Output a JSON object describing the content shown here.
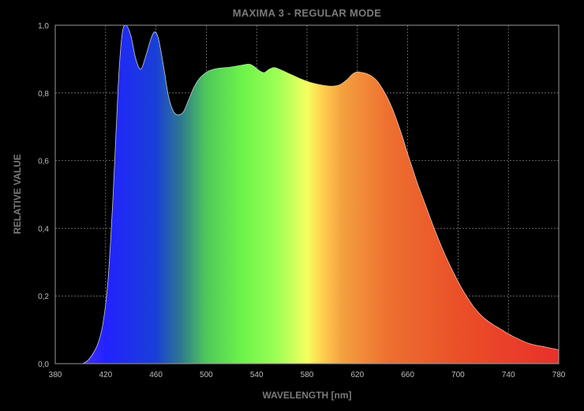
{
  "chart_data": {
    "type": "area",
    "title": "MAXIMA 3 - REGULAR MODE",
    "xlabel": "WAVELENGTH [nm]",
    "ylabel": "RELATIVE VALUE",
    "xlim": [
      380,
      780
    ],
    "ylim": [
      0,
      1.0
    ],
    "x_ticks": [
      380,
      420,
      460,
      500,
      540,
      580,
      620,
      660,
      700,
      740,
      780
    ],
    "x_tick_labels": [
      "380",
      "420",
      "460",
      "500",
      "540",
      "580",
      "620",
      "660",
      "700",
      "740",
      "780"
    ],
    "y_ticks": [
      0,
      0.2,
      0.4,
      0.6,
      0.8,
      1.0
    ],
    "y_tick_labels": [
      "0,0",
      "0,2",
      "0,4",
      "0,6",
      "0,8",
      "1,0"
    ],
    "grid": true,
    "fill": "spectral-gradient",
    "series": [
      {
        "x": [
          402,
          406,
          410,
          414,
          418,
          422,
          426,
          430,
          433,
          436,
          440,
          444,
          448,
          452,
          456,
          459,
          462,
          466,
          470,
          474,
          478,
          482,
          486,
          490,
          494,
          498,
          502,
          506,
          510,
          516,
          522,
          528,
          534,
          538,
          542,
          546,
          550,
          554,
          558,
          564,
          570,
          576,
          582,
          588,
          594,
          600,
          606,
          612,
          616,
          620,
          624,
          628,
          632,
          636,
          640,
          644,
          648,
          652,
          656,
          660,
          664,
          668,
          672,
          676,
          680,
          684,
          688,
          692,
          696,
          700,
          704,
          708,
          712,
          716,
          720,
          724,
          728,
          732,
          736,
          740,
          744,
          748,
          752,
          756,
          760,
          764,
          768,
          772,
          776,
          780
        ],
        "values": [
          0.0,
          0.01,
          0.03,
          0.06,
          0.12,
          0.25,
          0.5,
          0.82,
          0.97,
          1.0,
          0.97,
          0.9,
          0.87,
          0.91,
          0.96,
          0.98,
          0.96,
          0.88,
          0.79,
          0.745,
          0.735,
          0.745,
          0.78,
          0.815,
          0.84,
          0.855,
          0.865,
          0.87,
          0.873,
          0.875,
          0.878,
          0.882,
          0.885,
          0.878,
          0.866,
          0.86,
          0.87,
          0.875,
          0.87,
          0.86,
          0.85,
          0.84,
          0.832,
          0.826,
          0.822,
          0.82,
          0.824,
          0.84,
          0.855,
          0.862,
          0.86,
          0.856,
          0.848,
          0.834,
          0.812,
          0.785,
          0.752,
          0.712,
          0.668,
          0.62,
          0.575,
          0.53,
          0.49,
          0.45,
          0.41,
          0.372,
          0.336,
          0.303,
          0.272,
          0.243,
          0.216,
          0.192,
          0.17,
          0.152,
          0.137,
          0.125,
          0.115,
          0.106,
          0.097,
          0.088,
          0.08,
          0.073,
          0.066,
          0.06,
          0.056,
          0.053,
          0.05,
          0.047,
          0.044,
          0.041
        ]
      }
    ]
  }
}
